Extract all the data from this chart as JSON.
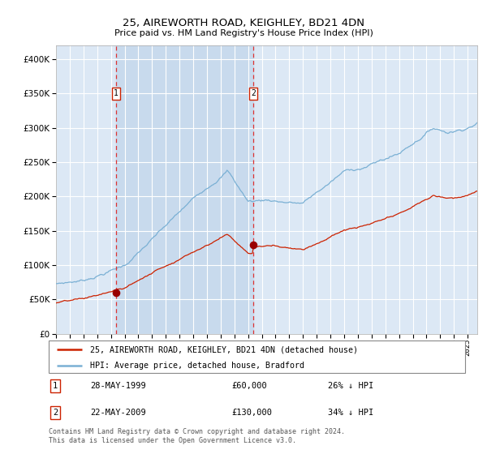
{
  "title": "25, AIREWORTH ROAD, KEIGHLEY, BD21 4DN",
  "subtitle": "Price paid vs. HM Land Registry's House Price Index (HPI)",
  "legend_line1": "25, AIREWORTH ROAD, KEIGHLEY, BD21 4DN (detached house)",
  "legend_line2": "HPI: Average price, detached house, Bradford",
  "sale1_date": "28-MAY-1999",
  "sale1_price": "£60,000",
  "sale1_hpi": "26% ↓ HPI",
  "sale1_year": 1999.38,
  "sale1_value": 60000,
  "sale2_date": "22-MAY-2009",
  "sale2_price": "£130,000",
  "sale2_hpi": "34% ↓ HPI",
  "sale2_year": 2009.38,
  "sale2_value": 130000,
  "background_color": "#ffffff",
  "plot_bg_color": "#dce8f5",
  "shaded_region_color": "#c8daed",
  "grid_color": "#ffffff",
  "red_line_color": "#cc2200",
  "blue_line_color": "#7ab0d4",
  "dashed_line_color": "#dd3333",
  "dot_color": "#990000",
  "ylim": [
    0,
    420000
  ],
  "yticks": [
    0,
    50000,
    100000,
    150000,
    200000,
    250000,
    300000,
    350000,
    400000
  ],
  "xmin": 1995.0,
  "xmax": 2025.7,
  "footnote": "Contains HM Land Registry data © Crown copyright and database right 2024.\nThis data is licensed under the Open Government Licence v3.0."
}
